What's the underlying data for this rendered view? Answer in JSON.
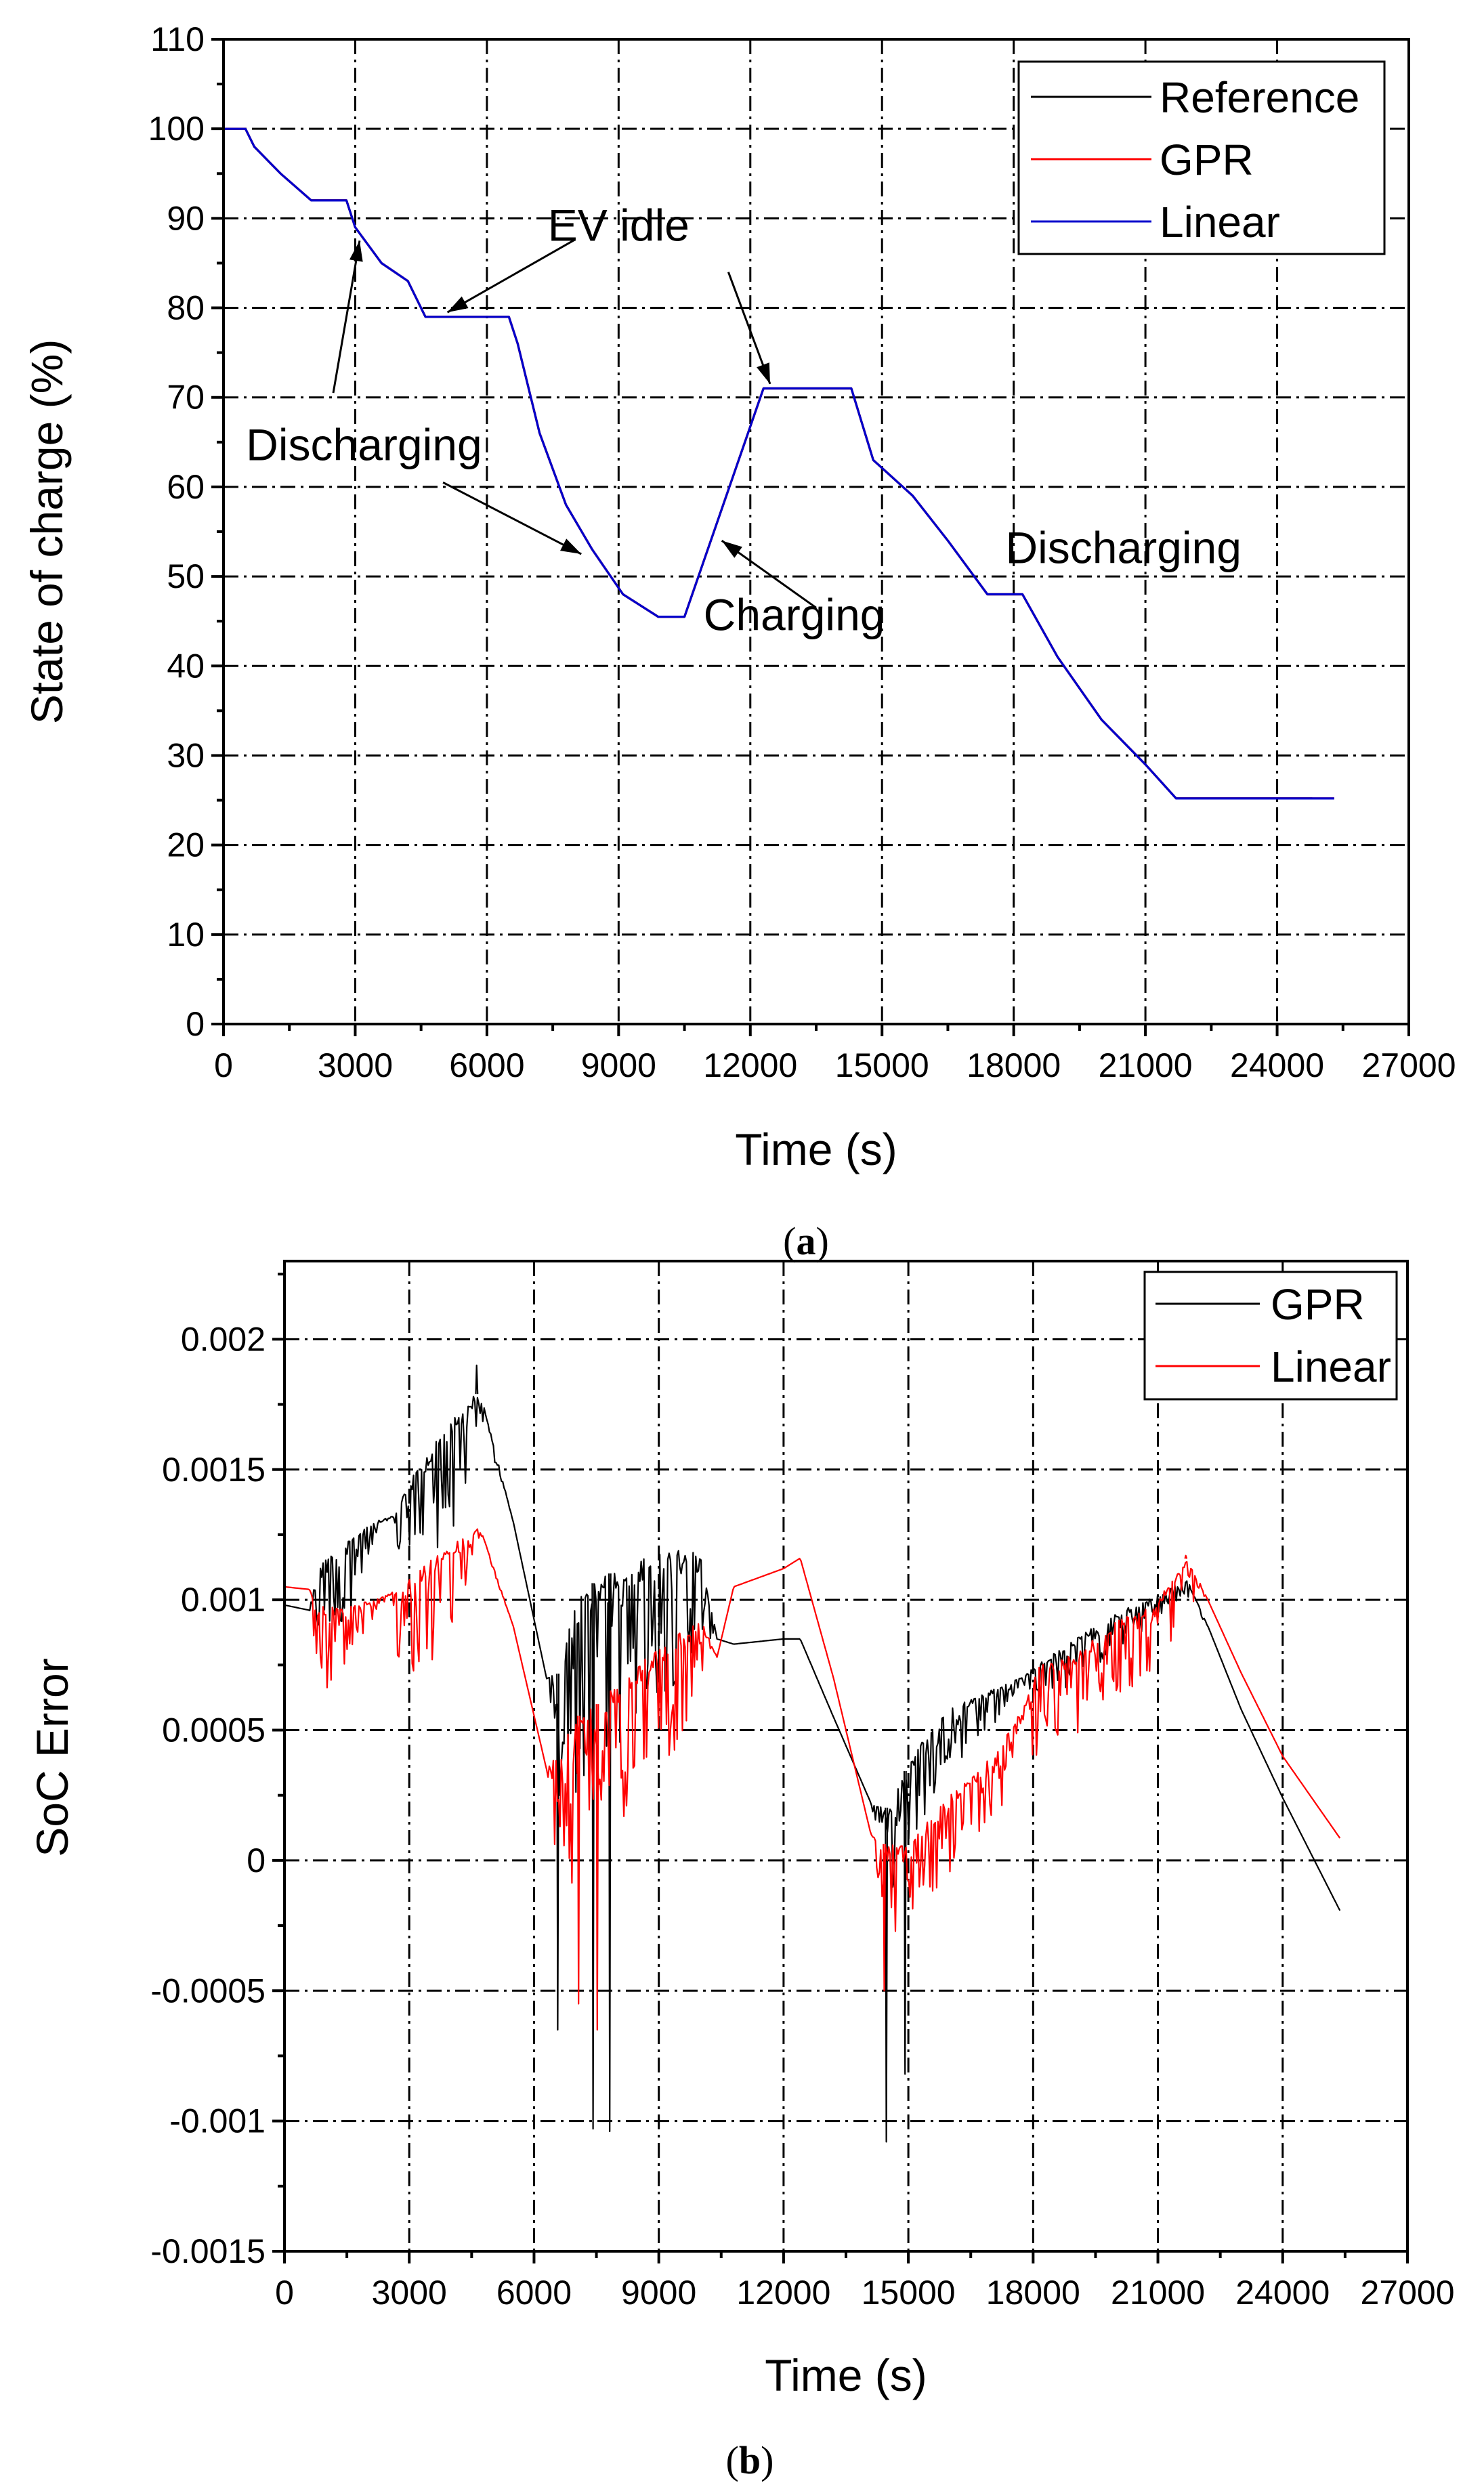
{
  "chart_data": [
    {
      "id": "a",
      "type": "line",
      "panel_label": "a",
      "xlabel": "Time (s)",
      "ylabel": "State of charge (%)",
      "xlim": [
        0,
        27000
      ],
      "ylim": [
        0,
        110
      ],
      "xticks": [
        0,
        3000,
        6000,
        9000,
        12000,
        15000,
        18000,
        21000,
        24000,
        27000
      ],
      "yticks": [
        0,
        10,
        20,
        30,
        40,
        50,
        60,
        70,
        80,
        90,
        100,
        110
      ],
      "grid": true,
      "legend_position": "top-right",
      "series": [
        {
          "name": "Reference",
          "color": "#000000",
          "x": [
            0,
            500,
            700,
            1300,
            2000,
            2800,
            3000,
            3600,
            4200,
            4600,
            6500,
            6700,
            7200,
            7800,
            8400,
            9100,
            9900,
            10500,
            12300,
            14300,
            14800,
            15700,
            16500,
            17400,
            18200,
            19000,
            20000,
            21000,
            21700,
            24800
          ],
          "y": [
            100,
            100,
            98,
            95,
            92,
            92,
            89,
            85,
            83,
            79,
            79,
            76,
            66,
            58,
            53,
            48,
            45.5,
            45.5,
            71,
            71,
            63,
            59,
            54,
            48,
            48,
            41,
            34,
            29,
            25.2,
            25.2
          ]
        },
        {
          "name": "GPR",
          "color": "#ff0000",
          "x": [
            0,
            500,
            700,
            1300,
            2000,
            2800,
            3000,
            3600,
            4200,
            4600,
            6500,
            6700,
            7200,
            7800,
            8400,
            9100,
            9900,
            10500,
            12300,
            14300,
            14800,
            15700,
            16500,
            17400,
            18200,
            19000,
            20000,
            21000,
            21700,
            25300
          ],
          "y": [
            100,
            100,
            98,
            95,
            92,
            92,
            89,
            85,
            83,
            79,
            79,
            76,
            66,
            58,
            53,
            48,
            45.5,
            45.5,
            71,
            71,
            63,
            59,
            54,
            48,
            48,
            41,
            34,
            29,
            25.2,
            25.2
          ]
        },
        {
          "name": "Linear",
          "color": "#0000cc",
          "x": [
            0,
            500,
            700,
            1300,
            2000,
            2800,
            3000,
            3600,
            4200,
            4600,
            6500,
            6700,
            7200,
            7800,
            8400,
            9100,
            9900,
            10500,
            12300,
            14300,
            14800,
            15700,
            16500,
            17400,
            18200,
            19000,
            20000,
            21000,
            21700,
            25300
          ],
          "y": [
            100,
            100,
            98,
            95,
            92,
            92,
            89,
            85,
            83,
            79,
            79,
            76,
            66,
            58,
            53,
            48,
            45.5,
            45.5,
            71,
            71,
            63,
            59,
            54,
            48,
            48,
            41,
            34,
            29,
            25.2,
            25.2
          ]
        }
      ],
      "annotations": [
        {
          "text": "EV idle",
          "text_x": 9000,
          "text_y": 87.5,
          "arrows": [
            [
              8000,
              87.6,
              5100,
              79.5
            ],
            [
              11500,
              84,
              12450,
              71.5
            ]
          ]
        },
        {
          "text": "Discharging",
          "text_x": 3200,
          "text_y": 63,
          "arrows": [
            [
              2500,
              70.5,
              3100,
              87.5
            ],
            [
              5000,
              60.5,
              8150,
              52.5
            ]
          ]
        },
        {
          "text": "Charging",
          "text_x": 13000,
          "text_y": 44,
          "arrows": [
            [
              13500,
              46.5,
              11350,
              54
            ]
          ]
        },
        {
          "text": "Discharging",
          "text_x": 20500,
          "text_y": 51.5,
          "arrows": []
        }
      ]
    },
    {
      "id": "b",
      "type": "line",
      "panel_label": "b",
      "xlabel": "Time (s)",
      "ylabel": "SoC Error",
      "xlim": [
        0,
        27000
      ],
      "ylim": [
        -0.0015,
        0.0023
      ],
      "xticks": [
        0,
        3000,
        6000,
        9000,
        12000,
        15000,
        18000,
        21000,
        24000,
        27000
      ],
      "yticks": [
        -0.0015,
        -0.001,
        -0.0005,
        0,
        0.0005,
        0.001,
        0.0015,
        0.002
      ],
      "ytick_labels": [
        "-0.0015",
        "-0.001",
        "-0.0005",
        "0",
        "0.0005",
        "0.001",
        "0.0015",
        "0.002"
      ],
      "grid": true,
      "legend_position": "top-right",
      "series": [
        {
          "name": "GPR",
          "color": "#000000",
          "envelope_x": [
            0,
            600,
            800,
            1500,
            2000,
            2600,
            2800,
            3500,
            4200,
            4700,
            5500,
            6300,
            6600,
            7000,
            7500,
            8500,
            9500,
            10000,
            10400,
            10800,
            12000,
            12400,
            13200,
            14100,
            14500,
            15200,
            16000,
            17000,
            17700,
            18100,
            19000,
            20000,
            21000,
            21700,
            22200,
            23000,
            24000,
            25400
          ],
          "envelope_upper": [
            0.00098,
            0.00096,
            0.00115,
            0.00122,
            0.0013,
            0.00132,
            0.0014,
            0.00158,
            0.00175,
            0.0018,
            0.0013,
            0.0007,
            0.00072,
            0.001,
            0.00108,
            0.00115,
            0.0012,
            0.0012,
            0.00085,
            0.00083,
            0.00085,
            0.00085,
            0.00055,
            0.00022,
            0.0002,
            0.00045,
            0.00058,
            0.00066,
            0.0007,
            0.00075,
            0.00085,
            0.00095,
            0.00102,
            0.00108,
            0.0009,
            0.00058,
            0.00024,
            -0.0002
          ],
          "envelope_lower": [
            0.00098,
            0.00096,
            0.00085,
            0.0009,
            0.0011,
            0.00132,
            0.0011,
            0.00115,
            0.0013,
            0.0017,
            0.0013,
            0.0007,
            0.00018,
            0.00022,
            0.00035,
            0.0005,
            0.0007,
            0.00085,
            0.00085,
            0.00083,
            0.00085,
            0.00085,
            0.00055,
            0.00022,
            -0.00015,
            0.0001,
            0.00035,
            0.0005,
            0.00068,
            0.0006,
            0.00068,
            0.0008,
            0.00092,
            0.001,
            0.0009,
            0.00058,
            0.00024,
            -0.0002
          ],
          "min_values": {
            "x": [
              6550,
              7400,
              7800,
              14450,
              14900
            ],
            "y": [
              -0.00065,
              -0.00103,
              -0.00104,
              -0.00108,
              -0.00082
            ]
          },
          "max_values": {
            "x": [
              4600
            ],
            "y": [
              0.0019
            ]
          }
        },
        {
          "name": "Linear",
          "color": "#ff0000",
          "envelope_x": [
            0,
            600,
            800,
            1500,
            2200,
            2600,
            2800,
            3500,
            4200,
            4700,
            5500,
            6300,
            6600,
            7000,
            7500,
            8500,
            9500,
            10000,
            10400,
            10800,
            12000,
            12400,
            13200,
            14100,
            14500,
            15200,
            16000,
            17000,
            17700,
            18100,
            19000,
            20000,
            21000,
            21700,
            22200,
            23000,
            24000,
            25400
          ],
          "envelope_upper": [
            0.00105,
            0.00104,
            0.00098,
            0.00098,
            0.001,
            0.00103,
            0.00105,
            0.00115,
            0.00123,
            0.00128,
            0.0009,
            0.00035,
            0.00045,
            0.00055,
            0.0006,
            0.00075,
            0.00088,
            0.00093,
            0.00078,
            0.00105,
            0.00112,
            0.00116,
            0.0007,
            0.0001,
            5e-05,
            0.0001,
            0.00025,
            0.0004,
            0.00057,
            0.00075,
            0.0008,
            0.00092,
            0.001,
            0.00117,
            0.001,
            0.00072,
            0.0004,
            8e-05
          ],
          "envelope_lower": [
            0.00105,
            0.00104,
            0.0006,
            0.00075,
            0.00095,
            0.00103,
            0.0006,
            0.00075,
            0.00095,
            0.00125,
            0.0009,
            0.00035,
            -0.0001,
            -0.0001,
            0.0001,
            0.0002,
            0.00045,
            0.0007,
            0.00078,
            0.00105,
            0.00112,
            0.00116,
            0.0007,
            0.0001,
            -0.0003,
            -0.0002,
            -5e-05,
            0.0001,
            0.00038,
            0.0004,
            0.00045,
            0.0006,
            0.00075,
            0.00095,
            0.001,
            0.00072,
            0.0004,
            8e-05
          ],
          "min_values": {
            "x": [
              7050,
              7500,
              14400
            ],
            "y": [
              -0.00055,
              -0.00065,
              -0.0005
            ]
          },
          "max_values": {
            "x": [
              21650
            ],
            "y": [
              0.00117
            ]
          }
        }
      ]
    }
  ]
}
